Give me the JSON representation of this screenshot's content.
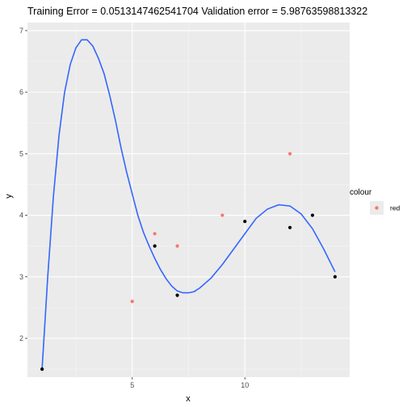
{
  "chart_data": {
    "type": "scatter",
    "title": "Training Error =  0.0513147462541704 Validation error =  5.98763598813322",
    "xlabel": "x",
    "ylabel": "y",
    "xlim": [
      0.35,
      14.65
    ],
    "ylim": [
      1.37,
      7.13
    ],
    "x_ticks": [
      5,
      10
    ],
    "x_tick_labels": [
      "5",
      "10"
    ],
    "y_ticks": [
      2,
      3,
      4,
      5,
      6,
      7
    ],
    "y_tick_labels": [
      "2",
      "3",
      "4",
      "5",
      "6",
      "7"
    ],
    "grid": true,
    "legend_position": "right",
    "legend": {
      "title": "colour",
      "entries": [
        {
          "label": "red",
          "color": "#F8766D"
        }
      ]
    },
    "series": [
      {
        "color": "#000000",
        "marker": "point",
        "points": [
          {
            "x": 1,
            "y": 1.5
          },
          {
            "x": 6,
            "y": 3.5
          },
          {
            "x": 7,
            "y": 2.7
          },
          {
            "x": 10,
            "y": 3.9
          },
          {
            "x": 12,
            "y": 3.8
          },
          {
            "x": 13,
            "y": 4.0
          },
          {
            "x": 14,
            "y": 3.0
          }
        ]
      },
      {
        "name": "red",
        "color": "#F8766D",
        "marker": "point",
        "points": [
          {
            "x": 5,
            "y": 2.6
          },
          {
            "x": 6,
            "y": 3.7
          },
          {
            "x": 7,
            "y": 3.5
          },
          {
            "x": 9,
            "y": 4.0
          },
          {
            "x": 12,
            "y": 5.0
          }
        ]
      }
    ],
    "fit_curve": {
      "color": "#3366FF",
      "points": [
        [
          1.0,
          1.5
        ],
        [
          1.25,
          3.0
        ],
        [
          1.5,
          4.3
        ],
        [
          1.75,
          5.3
        ],
        [
          2.0,
          6.0
        ],
        [
          2.25,
          6.45
        ],
        [
          2.5,
          6.72
        ],
        [
          2.75,
          6.85
        ],
        [
          3.0,
          6.85
        ],
        [
          3.25,
          6.75
        ],
        [
          3.5,
          6.55
        ],
        [
          3.75,
          6.3
        ],
        [
          4.0,
          5.95
        ],
        [
          4.25,
          5.55
        ],
        [
          4.5,
          5.1
        ],
        [
          4.75,
          4.7
        ],
        [
          5.0,
          4.35
        ],
        [
          5.25,
          4.0
        ],
        [
          5.5,
          3.72
        ],
        [
          5.75,
          3.5
        ],
        [
          6.0,
          3.3
        ],
        [
          6.25,
          3.12
        ],
        [
          6.5,
          2.97
        ],
        [
          6.75,
          2.85
        ],
        [
          7.0,
          2.77
        ],
        [
          7.25,
          2.74
        ],
        [
          7.5,
          2.74
        ],
        [
          7.75,
          2.76
        ],
        [
          8.0,
          2.82
        ],
        [
          8.5,
          2.98
        ],
        [
          9.0,
          3.2
        ],
        [
          9.5,
          3.45
        ],
        [
          10.0,
          3.7
        ],
        [
          10.5,
          3.95
        ],
        [
          11.0,
          4.1
        ],
        [
          11.5,
          4.17
        ],
        [
          12.0,
          4.15
        ],
        [
          12.5,
          4.02
        ],
        [
          13.0,
          3.78
        ],
        [
          13.5,
          3.45
        ],
        [
          14.0,
          3.08
        ]
      ]
    }
  }
}
